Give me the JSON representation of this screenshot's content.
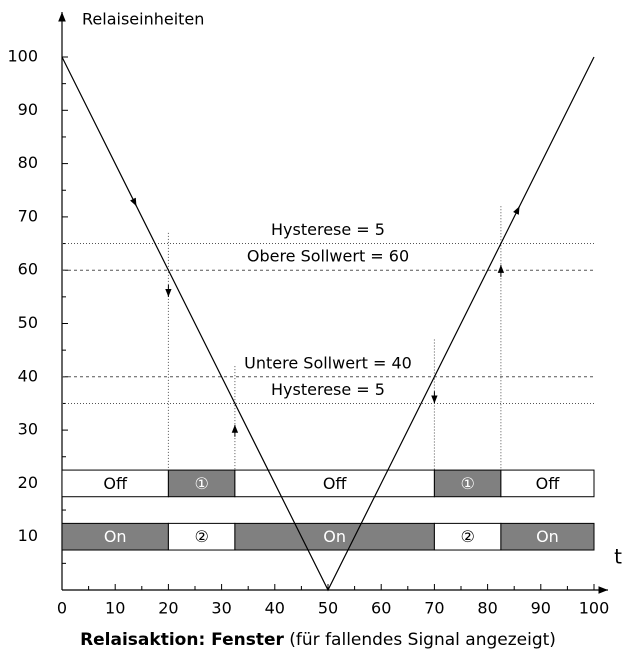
{
  "chart_data": {
    "type": "line",
    "ylabel": "Relaiseinheiten",
    "xlabel": "t",
    "caption_bold": "Relaisaktion: Fenster",
    "caption": " (für fallendes Signal angezeigt)",
    "x": [
      0,
      50,
      100
    ],
    "values": [
      100,
      0,
      100
    ],
    "color": "#000000",
    "xlim": [
      0,
      100
    ],
    "ylim": [
      0,
      100
    ],
    "xticks": [
      0,
      10,
      20,
      30,
      40,
      50,
      60,
      70,
      80,
      90,
      100
    ],
    "yticks": [
      10,
      20,
      30,
      40,
      50,
      60,
      70,
      80,
      90,
      100
    ],
    "reference_lines": [
      {
        "value": 65,
        "style": "dotted",
        "label": "Hysterese = 5",
        "label_side": "above"
      },
      {
        "value": 60,
        "style": "dashed",
        "label": "Obere Sollwert = 60",
        "label_side": "above"
      },
      {
        "value": 40,
        "style": "dashed",
        "label": "Untere Sollwert = 40",
        "label_side": "above"
      },
      {
        "value": 35,
        "style": "dotted",
        "label": "Hysterese = 5",
        "label_side": "above"
      }
    ],
    "switch_points": [
      {
        "x": 20,
        "direction": "down"
      },
      {
        "x": 32.5,
        "direction": "up"
      },
      {
        "x": 70,
        "direction": "down"
      },
      {
        "x": 82.5,
        "direction": "up"
      }
    ],
    "relay_rows": [
      {
        "low": 17.5,
        "high": 22.5,
        "segments": [
          {
            "start": 0,
            "end": 20,
            "label": "Off",
            "color": "#ffffff"
          },
          {
            "start": 20,
            "end": 32.5,
            "label": "①",
            "color": "#808080"
          },
          {
            "start": 32.5,
            "end": 70,
            "label": "Off",
            "color": "#ffffff"
          },
          {
            "start": 70,
            "end": 82.5,
            "label": "①",
            "color": "#808080"
          },
          {
            "start": 82.5,
            "end": 100,
            "label": "Off",
            "color": "#ffffff"
          }
        ]
      },
      {
        "low": 7.5,
        "high": 12.5,
        "segments": [
          {
            "start": 0,
            "end": 20,
            "label": "On",
            "color": "#808080"
          },
          {
            "start": 20,
            "end": 32.5,
            "label": "②",
            "color": "#ffffff"
          },
          {
            "start": 32.5,
            "end": 70,
            "label": "On",
            "color": "#808080"
          },
          {
            "start": 70,
            "end": 82.5,
            "label": "②",
            "color": "#ffffff"
          },
          {
            "start": 82.5,
            "end": 100,
            "label": "On",
            "color": "#808080"
          }
        ]
      }
    ]
  }
}
